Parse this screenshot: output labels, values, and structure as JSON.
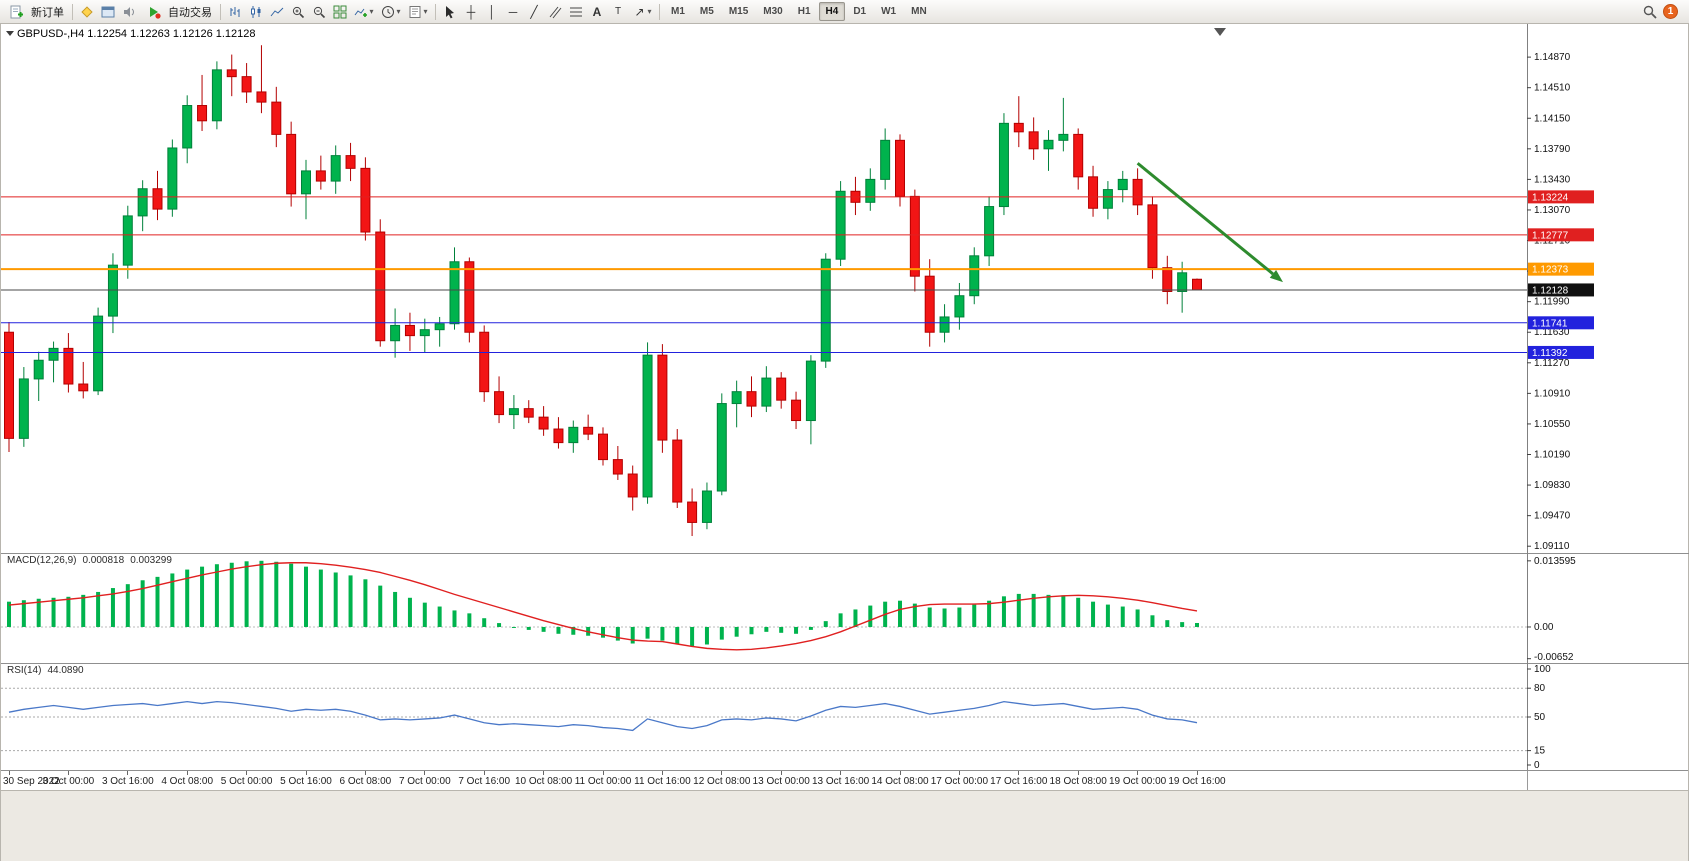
{
  "toolbar": {
    "new_order_label": "新订单",
    "autotrading_label": "自动交易",
    "timeframes": [
      "M1",
      "M5",
      "M15",
      "M30",
      "H1",
      "H4",
      "D1",
      "W1",
      "MN"
    ],
    "active_timeframe": "H4",
    "notification_count": "1"
  },
  "chart": {
    "title": "GBPUSD-,H4 1.12254 1.12263 1.12126 1.12128"
  },
  "chart_data": {
    "type": "candlestick",
    "symbol": "GBPUSD-",
    "timeframe": "H4",
    "ohlc_display": {
      "open": "1.12254",
      "high": "1.12263",
      "low": "1.12126",
      "close": "1.12128"
    },
    "ylim": [
      1.0903,
      1.1526
    ],
    "price_axis_ticks": [
      "1.14870",
      "1.14510",
      "1.14150",
      "1.13790",
      "1.13430",
      "1.13070",
      "1.12710",
      "1.12350",
      "1.11990",
      "1.11630",
      "1.11270",
      "1.10910",
      "1.10550",
      "1.10190",
      "1.09830",
      "1.09470",
      "1.09110"
    ],
    "time_labels": [
      "30 Sep 2022",
      "3 Oct 00:00",
      "3 Oct 16:00",
      "4 Oct 08:00",
      "5 Oct 00:00",
      "5 Oct 16:00",
      "6 Oct 08:00",
      "7 Oct 00:00",
      "7 Oct 16:00",
      "10 Oct 08:00",
      "11 Oct 00:00",
      "11 Oct 16:00",
      "12 Oct 08:00",
      "13 Oct 00:00",
      "13 Oct 16:00",
      "14 Oct 08:00",
      "17 Oct 00:00",
      "17 Oct 16:00",
      "18 Oct 08:00",
      "19 Oct 00:00",
      "19 Oct 16:00"
    ],
    "bars_per_label": 4,
    "colors": {
      "up": "#00b34d",
      "up_stroke": "#00813a",
      "down": "#f21515",
      "down_stroke": "#b30000"
    },
    "candles": [
      [
        1.1163,
        1.1175,
        1.1022,
        1.1038
      ],
      [
        1.1038,
        1.1122,
        1.1028,
        1.1108
      ],
      [
        1.1108,
        1.114,
        1.1082,
        1.113
      ],
      [
        1.113,
        1.1152,
        1.1104,
        1.1144
      ],
      [
        1.1144,
        1.1162,
        1.1092,
        1.1102
      ],
      [
        1.1102,
        1.1128,
        1.1085,
        1.1094
      ],
      [
        1.1094,
        1.1192,
        1.1089,
        1.1182
      ],
      [
        1.1182,
        1.1256,
        1.1162,
        1.1242
      ],
      [
        1.1242,
        1.1312,
        1.1226,
        1.13
      ],
      [
        1.13,
        1.1342,
        1.1282,
        1.1332
      ],
      [
        1.1332,
        1.1353,
        1.1295,
        1.1308
      ],
      [
        1.1308,
        1.139,
        1.1299,
        1.138
      ],
      [
        1.138,
        1.1442,
        1.1362,
        1.143
      ],
      [
        1.143,
        1.1466,
        1.14,
        1.1412
      ],
      [
        1.1412,
        1.1482,
        1.1402,
        1.1472
      ],
      [
        1.1472,
        1.149,
        1.1441,
        1.1464
      ],
      [
        1.1464,
        1.148,
        1.1433,
        1.1446
      ],
      [
        1.1446,
        1.1501,
        1.1421,
        1.1434
      ],
      [
        1.1434,
        1.1452,
        1.1381,
        1.1396
      ],
      [
        1.1396,
        1.1411,
        1.1311,
        1.1326
      ],
      [
        1.1326,
        1.1366,
        1.1296,
        1.1353
      ],
      [
        1.1353,
        1.1371,
        1.1331,
        1.1341
      ],
      [
        1.1341,
        1.1383,
        1.1326,
        1.1371
      ],
      [
        1.1371,
        1.1386,
        1.1341,
        1.1356
      ],
      [
        1.1356,
        1.1369,
        1.1271,
        1.1281
      ],
      [
        1.1281,
        1.1296,
        1.1146,
        1.1153
      ],
      [
        1.1153,
        1.1191,
        1.1133,
        1.1171
      ],
      [
        1.1171,
        1.1186,
        1.1141,
        1.1159
      ],
      [
        1.1159,
        1.1179,
        1.1139,
        1.1166
      ],
      [
        1.1166,
        1.1181,
        1.1146,
        1.1173
      ],
      [
        1.1173,
        1.1263,
        1.1166,
        1.1246
      ],
      [
        1.1246,
        1.1251,
        1.1151,
        1.1163
      ],
      [
        1.1163,
        1.1171,
        1.1081,
        1.1093
      ],
      [
        1.1093,
        1.1111,
        1.1056,
        1.1066
      ],
      [
        1.1066,
        1.1089,
        1.1049,
        1.1073
      ],
      [
        1.1073,
        1.1083,
        1.1056,
        1.1063
      ],
      [
        1.1063,
        1.1076,
        1.1041,
        1.1049
      ],
      [
        1.1049,
        1.1063,
        1.1026,
        1.1033
      ],
      [
        1.1033,
        1.1059,
        1.1021,
        1.1051
      ],
      [
        1.1051,
        1.1066,
        1.1036,
        1.1043
      ],
      [
        1.1043,
        1.1051,
        1.1006,
        1.1013
      ],
      [
        1.1013,
        1.1029,
        1.0989,
        1.0996
      ],
      [
        1.0996,
        1.1006,
        1.0953,
        1.0969
      ],
      [
        1.0969,
        1.1151,
        1.0961,
        1.1136
      ],
      [
        1.1136,
        1.1149,
        1.1021,
        1.1036
      ],
      [
        1.1036,
        1.1049,
        1.0956,
        1.0963
      ],
      [
        1.0963,
        1.0979,
        1.0923,
        1.0939
      ],
      [
        1.0939,
        1.0986,
        1.0931,
        1.0976
      ],
      [
        1.0976,
        1.1091,
        1.0971,
        1.1079
      ],
      [
        1.1079,
        1.1106,
        1.1051,
        1.1093
      ],
      [
        1.1093,
        1.1111,
        1.1063,
        1.1076
      ],
      [
        1.1076,
        1.1123,
        1.1069,
        1.1109
      ],
      [
        1.1109,
        1.1116,
        1.1073,
        1.1083
      ],
      [
        1.1083,
        1.1093,
        1.1049,
        1.1059
      ],
      [
        1.1059,
        1.1136,
        1.1031,
        1.1129
      ],
      [
        1.1129,
        1.1256,
        1.1121,
        1.1249
      ],
      [
        1.1249,
        1.1341,
        1.1241,
        1.1329
      ],
      [
        1.1329,
        1.1346,
        1.1301,
        1.1316
      ],
      [
        1.1316,
        1.1356,
        1.1306,
        1.1343
      ],
      [
        1.1343,
        1.1403,
        1.1331,
        1.1389
      ],
      [
        1.1389,
        1.1396,
        1.1311,
        1.1323
      ],
      [
        1.1323,
        1.1331,
        1.1211,
        1.1229
      ],
      [
        1.1229,
        1.1249,
        1.1146,
        1.1163
      ],
      [
        1.1163,
        1.1196,
        1.1151,
        1.1181
      ],
      [
        1.1181,
        1.1221,
        1.1166,
        1.1206
      ],
      [
        1.1206,
        1.1263,
        1.1196,
        1.1253
      ],
      [
        1.1253,
        1.1323,
        1.1241,
        1.1311
      ],
      [
        1.1311,
        1.1421,
        1.1301,
        1.1409
      ],
      [
        1.1409,
        1.1441,
        1.1381,
        1.1399
      ],
      [
        1.1399,
        1.1416,
        1.1366,
        1.1379
      ],
      [
        1.1379,
        1.1401,
        1.1353,
        1.1389
      ],
      [
        1.1389,
        1.1439,
        1.1376,
        1.1396
      ],
      [
        1.1396,
        1.1403,
        1.1331,
        1.1346
      ],
      [
        1.1346,
        1.1359,
        1.1299,
        1.1309
      ],
      [
        1.1309,
        1.1341,
        1.1296,
        1.1331
      ],
      [
        1.1331,
        1.1353,
        1.1316,
        1.1343
      ],
      [
        1.1343,
        1.1356,
        1.1301,
        1.1313
      ],
      [
        1.1313,
        1.1323,
        1.1226,
        1.1239
      ],
      [
        1.1239,
        1.1253,
        1.1196,
        1.1211
      ],
      [
        1.1211,
        1.1246,
        1.1186,
        1.1233
      ],
      [
        1.12254,
        1.12263,
        1.12126,
        1.12128
      ]
    ],
    "hlines": [
      {
        "name": "resistance-line-1",
        "price": 1.13224,
        "label": "1.13224",
        "color": "#e02020",
        "label_bg": "#e02020",
        "width": 1
      },
      {
        "name": "resistance-line-2",
        "price": 1.12777,
        "label": "1.12777",
        "color": "#e02020",
        "label_bg": "#e02020",
        "width": 1
      },
      {
        "name": "pivot-line",
        "price": 1.12373,
        "label": "1.12373",
        "color": "#ff9a00",
        "label_bg": "#ff9a00",
        "width": 2
      },
      {
        "name": "bid-price-line",
        "price": 1.12128,
        "label": "1.12128",
        "color": "#4a4a4a",
        "label_bg": "#101010",
        "width": 1
      },
      {
        "name": "support-line-1",
        "price": 1.11741,
        "label": "1.11741",
        "color": "#2222dd",
        "label_bg": "#2222dd",
        "width": 1
      },
      {
        "name": "support-line-2",
        "price": 1.11392,
        "label": "1.11392",
        "color": "#2222dd",
        "label_bg": "#2222dd",
        "width": 1
      }
    ],
    "trend_arrow": {
      "from_bar": 76,
      "from_price": 1.1362,
      "to_x": 1282,
      "to_price": 1.1222,
      "color": "#2e8b2e"
    },
    "macd": {
      "label": "MACD(12,26,9)",
      "value_main": "0.000818",
      "value_signal": "0.003299",
      "axis_labels": [
        "0.013595",
        "0.00",
        "-0.00652"
      ],
      "axis_values": [
        0.013595,
        0,
        -0.00652
      ],
      "scale_max": 0.015,
      "scale_min": -0.0072,
      "colors": {
        "histogram": "#00b34d",
        "signal": "#e02020"
      },
      "histogram": [
        0.0052,
        0.0055,
        0.0058,
        0.006,
        0.0062,
        0.0066,
        0.0072,
        0.008,
        0.0088,
        0.0096,
        0.0103,
        0.011,
        0.0118,
        0.0124,
        0.0129,
        0.0132,
        0.0135,
        0.0136,
        0.0134,
        0.013,
        0.0124,
        0.0118,
        0.0112,
        0.0106,
        0.0098,
        0.0085,
        0.0072,
        0.006,
        0.005,
        0.0042,
        0.0034,
        0.0028,
        0.0018,
        0.0008,
        0.0,
        -0.0006,
        -0.001,
        -0.0014,
        -0.0016,
        -0.0018,
        -0.0022,
        -0.0028,
        -0.0034,
        -0.0024,
        -0.0028,
        -0.0034,
        -0.004,
        -0.0036,
        -0.0026,
        -0.002,
        -0.0015,
        -0.001,
        -0.0012,
        -0.0014,
        -0.0006,
        0.0012,
        0.0028,
        0.0036,
        0.0044,
        0.0052,
        0.0054,
        0.0048,
        0.004,
        0.0038,
        0.004,
        0.0046,
        0.0054,
        0.0063,
        0.0068,
        0.0068,
        0.0066,
        0.0065,
        0.006,
        0.0052,
        0.0046,
        0.0042,
        0.0036,
        0.0024,
        0.0014,
        0.001,
        0.000818
      ],
      "signal": [
        0.0045,
        0.0048,
        0.0051,
        0.0054,
        0.0057,
        0.006,
        0.0064,
        0.0068,
        0.0073,
        0.0079,
        0.0086,
        0.0093,
        0.01,
        0.0107,
        0.0113,
        0.0119,
        0.0124,
        0.0128,
        0.0131,
        0.0132,
        0.0132,
        0.013,
        0.0127,
        0.0123,
        0.0118,
        0.0112,
        0.0104,
        0.0096,
        0.0087,
        0.0077,
        0.0067,
        0.0058,
        0.0049,
        0.004,
        0.0031,
        0.0022,
        0.0013,
        0.0005,
        -0.0003,
        -0.001,
        -0.0016,
        -0.0022,
        -0.0027,
        -0.0029,
        -0.003,
        -0.0035,
        -0.004,
        -0.0044,
        -0.0046,
        -0.0047,
        -0.0046,
        -0.0043,
        -0.0039,
        -0.0034,
        -0.0028,
        -0.002,
        -0.001,
        0.0002,
        0.0014,
        0.0026,
        0.0036,
        0.0042,
        0.0046,
        0.0047,
        0.0047,
        0.0047,
        0.0048,
        0.0051,
        0.0055,
        0.0059,
        0.0062,
        0.0064,
        0.0065,
        0.0064,
        0.0062,
        0.0059,
        0.0055,
        0.005,
        0.0044,
        0.0038,
        0.003299
      ]
    },
    "rsi": {
      "label": "RSI(14)",
      "value": "44.0890",
      "levels": [
        80,
        50,
        15
      ],
      "axis_labels": [
        "100",
        "80",
        "50",
        "15",
        "0"
      ],
      "axis_values": [
        100,
        80,
        50,
        15,
        0
      ],
      "color": "#4a78c8",
      "series": [
        55,
        58,
        60,
        62,
        60,
        58,
        60,
        62,
        63,
        64,
        62,
        64,
        66,
        64,
        66,
        65,
        63,
        61,
        59,
        56,
        58,
        57,
        58,
        56,
        52,
        47,
        48,
        47,
        48,
        49,
        52,
        48,
        44,
        42,
        43,
        42,
        41,
        40,
        42,
        41,
        39,
        38,
        36,
        48,
        44,
        40,
        38,
        41,
        47,
        48,
        47,
        49,
        48,
        46,
        51,
        57,
        61,
        60,
        62,
        64,
        61,
        57,
        53,
        55,
        57,
        59,
        62,
        66,
        64,
        62,
        63,
        64,
        61,
        58,
        59,
        60,
        58,
        52,
        48,
        47,
        44.089
      ]
    }
  }
}
